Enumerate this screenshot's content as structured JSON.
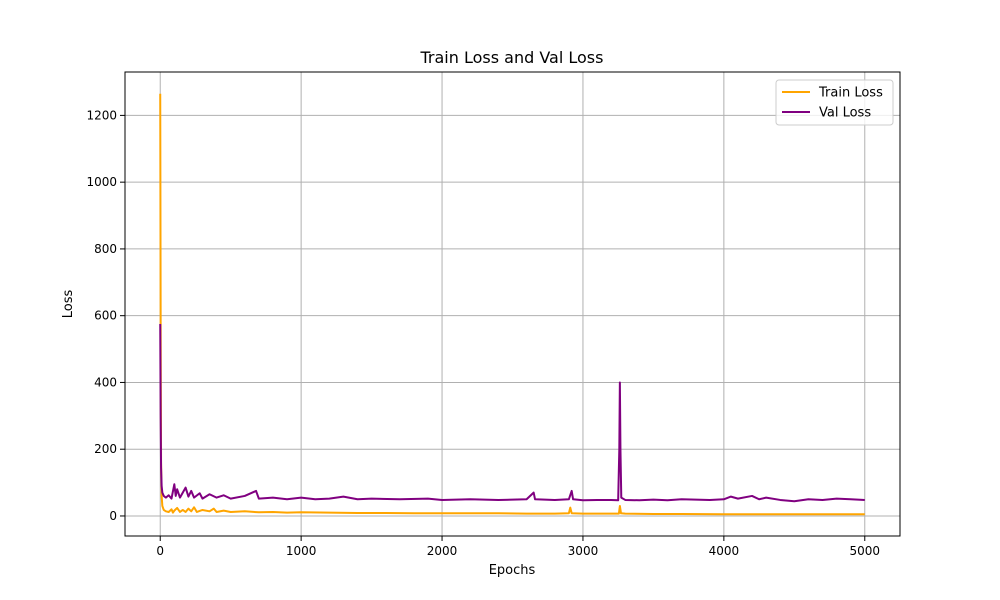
{
  "chart_data": {
    "type": "line",
    "title": "Train Loss and Val Loss",
    "xlabel": "Epochs",
    "ylabel": "Loss",
    "xlim": [
      -250,
      5250
    ],
    "ylim": [
      -60,
      1330
    ],
    "xticks": [
      0,
      1000,
      2000,
      3000,
      4000,
      5000
    ],
    "yticks": [
      0,
      200,
      400,
      600,
      800,
      1000,
      1200
    ],
    "grid": true,
    "legend_position": "top-right",
    "series": [
      {
        "name": "Train Loss",
        "color": "#FFA500",
        "points": [
          [
            0,
            1265
          ],
          [
            3,
            580
          ],
          [
            6,
            160
          ],
          [
            10,
            60
          ],
          [
            15,
            30
          ],
          [
            25,
            18
          ],
          [
            40,
            14
          ],
          [
            60,
            12
          ],
          [
            80,
            20
          ],
          [
            90,
            10
          ],
          [
            100,
            16
          ],
          [
            120,
            24
          ],
          [
            140,
            12
          ],
          [
            160,
            18
          ],
          [
            180,
            12
          ],
          [
            200,
            22
          ],
          [
            220,
            14
          ],
          [
            240,
            26
          ],
          [
            260,
            12
          ],
          [
            300,
            18
          ],
          [
            350,
            14
          ],
          [
            380,
            22
          ],
          [
            400,
            12
          ],
          [
            450,
            16
          ],
          [
            500,
            12
          ],
          [
            600,
            14
          ],
          [
            700,
            11
          ],
          [
            800,
            12
          ],
          [
            900,
            10
          ],
          [
            1000,
            11
          ],
          [
            1200,
            10
          ],
          [
            1400,
            9
          ],
          [
            1600,
            9
          ],
          [
            1800,
            8
          ],
          [
            2000,
            8
          ],
          [
            2200,
            8
          ],
          [
            2400,
            8
          ],
          [
            2600,
            7
          ],
          [
            2800,
            7
          ],
          [
            2900,
            8
          ],
          [
            2910,
            25
          ],
          [
            2920,
            8
          ],
          [
            3000,
            7
          ],
          [
            3200,
            7
          ],
          [
            3255,
            7
          ],
          [
            3262,
            30
          ],
          [
            3270,
            8
          ],
          [
            3300,
            7
          ],
          [
            3500,
            6
          ],
          [
            3700,
            6
          ],
          [
            4000,
            5
          ],
          [
            4200,
            5
          ],
          [
            4500,
            5
          ],
          [
            4800,
            5
          ],
          [
            5000,
            5
          ]
        ]
      },
      {
        "name": "Val Loss",
        "color": "#800080",
        "points": [
          [
            0,
            575
          ],
          [
            3,
            300
          ],
          [
            6,
            145
          ],
          [
            10,
            90
          ],
          [
            15,
            70
          ],
          [
            25,
            60
          ],
          [
            40,
            55
          ],
          [
            60,
            62
          ],
          [
            80,
            52
          ],
          [
            100,
            95
          ],
          [
            110,
            60
          ],
          [
            120,
            80
          ],
          [
            140,
            55
          ],
          [
            160,
            70
          ],
          [
            180,
            85
          ],
          [
            200,
            58
          ],
          [
            220,
            75
          ],
          [
            240,
            55
          ],
          [
            280,
            68
          ],
          [
            300,
            52
          ],
          [
            350,
            65
          ],
          [
            400,
            55
          ],
          [
            450,
            62
          ],
          [
            500,
            52
          ],
          [
            600,
            60
          ],
          [
            680,
            75
          ],
          [
            700,
            52
          ],
          [
            800,
            55
          ],
          [
            900,
            50
          ],
          [
            1000,
            55
          ],
          [
            1100,
            50
          ],
          [
            1200,
            52
          ],
          [
            1300,
            58
          ],
          [
            1400,
            50
          ],
          [
            1500,
            52
          ],
          [
            1700,
            50
          ],
          [
            1900,
            52
          ],
          [
            2000,
            48
          ],
          [
            2200,
            50
          ],
          [
            2400,
            48
          ],
          [
            2600,
            50
          ],
          [
            2650,
            70
          ],
          [
            2660,
            50
          ],
          [
            2800,
            48
          ],
          [
            2900,
            50
          ],
          [
            2920,
            75
          ],
          [
            2930,
            50
          ],
          [
            3000,
            47
          ],
          [
            3100,
            48
          ],
          [
            3200,
            48
          ],
          [
            3250,
            47
          ],
          [
            3258,
            200
          ],
          [
            3262,
            400
          ],
          [
            3266,
            200
          ],
          [
            3272,
            55
          ],
          [
            3300,
            48
          ],
          [
            3400,
            47
          ],
          [
            3500,
            49
          ],
          [
            3600,
            47
          ],
          [
            3700,
            50
          ],
          [
            3800,
            49
          ],
          [
            3900,
            48
          ],
          [
            4000,
            50
          ],
          [
            4050,
            58
          ],
          [
            4100,
            52
          ],
          [
            4200,
            60
          ],
          [
            4250,
            50
          ],
          [
            4300,
            55
          ],
          [
            4400,
            48
          ],
          [
            4500,
            44
          ],
          [
            4600,
            50
          ],
          [
            4700,
            48
          ],
          [
            4800,
            52
          ],
          [
            4900,
            50
          ],
          [
            5000,
            48
          ]
        ]
      }
    ]
  }
}
